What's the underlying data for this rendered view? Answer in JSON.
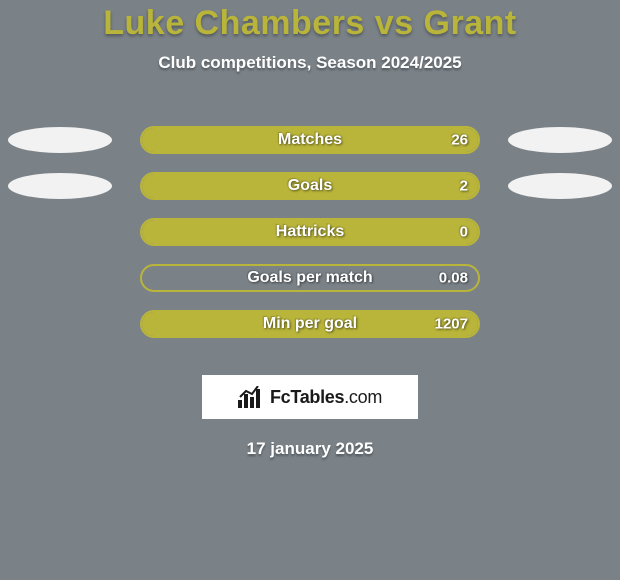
{
  "background_color": "#7a8288",
  "title": {
    "text": "Luke Chambers vs Grant",
    "color": "#b9b43a",
    "fontsize": 34
  },
  "subtitle": {
    "text": "Club competitions, Season 2024/2025",
    "color": "#ffffff",
    "fontsize": 17
  },
  "bar_style": {
    "border_color": "#b9b43a",
    "fill_color": "#b9b43a",
    "label_color": "#ffffff",
    "value_color": "#ffffff",
    "label_fontsize": 16,
    "value_fontsize": 15
  },
  "ellipse_style": {
    "width": 104,
    "height": 26,
    "color": "#f2f2f2"
  },
  "rows": [
    {
      "label": "Matches",
      "value": "26",
      "fill_pct": 100,
      "left_ellipse": true,
      "right_ellipse": true
    },
    {
      "label": "Goals",
      "value": "2",
      "fill_pct": 100,
      "left_ellipse": true,
      "right_ellipse": true
    },
    {
      "label": "Hattricks",
      "value": "0",
      "fill_pct": 100,
      "left_ellipse": false,
      "right_ellipse": false
    },
    {
      "label": "Goals per match",
      "value": "0.08",
      "fill_pct": 0,
      "left_ellipse": false,
      "right_ellipse": false
    },
    {
      "label": "Min per goal",
      "value": "1207",
      "fill_pct": 100,
      "left_ellipse": false,
      "right_ellipse": false
    }
  ],
  "logo": {
    "text_main": "FcTables",
    "text_suffix": ".com",
    "icon_color": "#1a1a1a"
  },
  "date": {
    "text": "17 january 2025",
    "color": "#ffffff",
    "fontsize": 17
  }
}
